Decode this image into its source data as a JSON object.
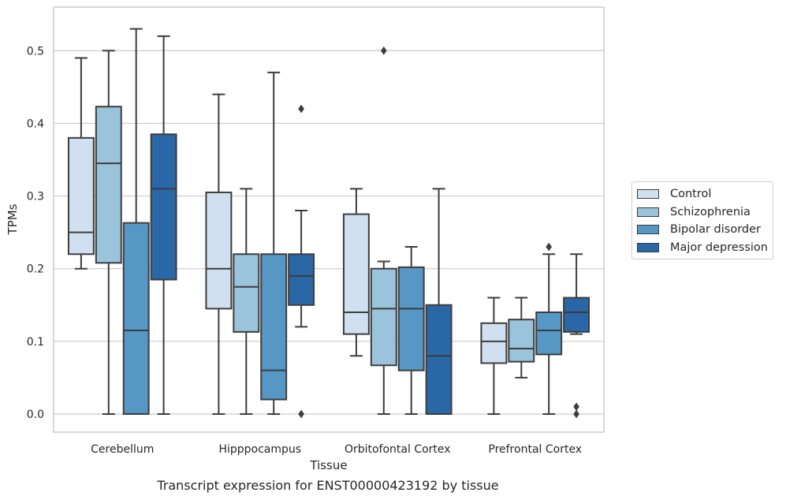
{
  "chart_data": {
    "type": "box",
    "xlabel": "Tissue",
    "ylabel": "TPMs",
    "caption": "Transcript expression for ENST00000423192 by tissue",
    "ylim": [
      -0.025,
      0.56
    ],
    "yticks": [
      0.0,
      0.1,
      0.2,
      0.3,
      0.4,
      0.5
    ],
    "ytick_labels": [
      "0.0",
      "0.1",
      "0.2",
      "0.3",
      "0.4",
      "0.5"
    ],
    "grid": "horizontal",
    "legend_position": "right",
    "categories": [
      "Cerebellum",
      "Hipppocampus",
      "Orbitofontal Cortex",
      "Prefrontal Cortex"
    ],
    "series": [
      {
        "name": "Control",
        "color": "#d1e0f0",
        "boxes": [
          {
            "whisker_low": 0.2,
            "q1": 0.22,
            "median": 0.25,
            "q3": 0.38,
            "whisker_high": 0.49,
            "outliers": []
          },
          {
            "whisker_low": 0.0,
            "q1": 0.145,
            "median": 0.2,
            "q3": 0.305,
            "whisker_high": 0.44,
            "outliers": []
          },
          {
            "whisker_low": 0.08,
            "q1": 0.11,
            "median": 0.14,
            "q3": 0.275,
            "whisker_high": 0.31,
            "outliers": []
          },
          {
            "whisker_low": 0.0,
            "q1": 0.07,
            "median": 0.1,
            "q3": 0.125,
            "whisker_high": 0.16,
            "outliers": []
          }
        ]
      },
      {
        "name": "Schizophrenia",
        "color": "#9ac3dc",
        "boxes": [
          {
            "whisker_low": 0.0,
            "q1": 0.208,
            "median": 0.345,
            "q3": 0.423,
            "whisker_high": 0.5,
            "outliers": []
          },
          {
            "whisker_low": 0.0,
            "q1": 0.113,
            "median": 0.175,
            "q3": 0.22,
            "whisker_high": 0.31,
            "outliers": []
          },
          {
            "whisker_low": 0.0,
            "q1": 0.067,
            "median": 0.145,
            "q3": 0.2,
            "whisker_high": 0.21,
            "outliers": [
              0.5
            ]
          },
          {
            "whisker_low": 0.05,
            "q1": 0.072,
            "median": 0.09,
            "q3": 0.13,
            "whisker_high": 0.16,
            "outliers": []
          }
        ]
      },
      {
        "name": "Bipolar disorder",
        "color": "#5697c6",
        "boxes": [
          {
            "whisker_low": 0.0,
            "q1": 0.0,
            "median": 0.115,
            "q3": 0.263,
            "whisker_high": 0.53,
            "outliers": []
          },
          {
            "whisker_low": 0.0,
            "q1": 0.02,
            "median": 0.06,
            "q3": 0.22,
            "whisker_high": 0.47,
            "outliers": []
          },
          {
            "whisker_low": 0.0,
            "q1": 0.06,
            "median": 0.145,
            "q3": 0.202,
            "whisker_high": 0.23,
            "outliers": []
          },
          {
            "whisker_low": 0.0,
            "q1": 0.082,
            "median": 0.115,
            "q3": 0.14,
            "whisker_high": 0.22,
            "outliers": [
              0.23
            ]
          }
        ]
      },
      {
        "name": "Major depression",
        "color": "#2a67a6",
        "boxes": [
          {
            "whisker_low": 0.0,
            "q1": 0.185,
            "median": 0.31,
            "q3": 0.385,
            "whisker_high": 0.52,
            "outliers": []
          },
          {
            "whisker_low": 0.12,
            "q1": 0.15,
            "median": 0.19,
            "q3": 0.22,
            "whisker_high": 0.28,
            "outliers": [
              0.42,
              0.0
            ]
          },
          {
            "whisker_low": 0.0,
            "q1": 0.0,
            "median": 0.08,
            "q3": 0.15,
            "whisker_high": 0.31,
            "outliers": []
          },
          {
            "whisker_low": 0.11,
            "q1": 0.113,
            "median": 0.14,
            "q3": 0.16,
            "whisker_high": 0.22,
            "outliers": [
              0.01,
              0.0
            ]
          }
        ]
      }
    ]
  }
}
